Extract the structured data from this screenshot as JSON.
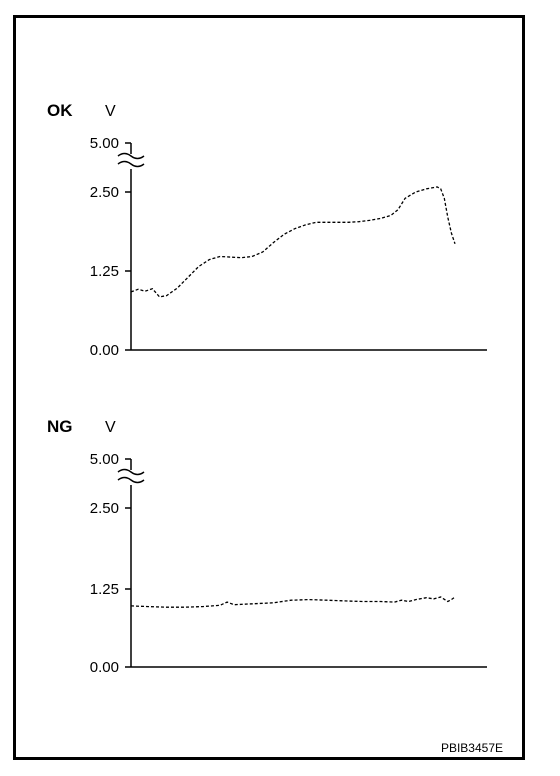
{
  "figure_code": "PBIB3457E",
  "chart_data": [
    {
      "type": "line",
      "panel_label": "OK",
      "ylabel": "V",
      "ylim": [
        0,
        5
      ],
      "yticks": [
        "5.00",
        "2.50",
        "1.25",
        "0.00"
      ],
      "axis_break": "between 2.50 and 5.00",
      "grid": false,
      "line_style": "dashed",
      "series": [
        {
          "values": [
            [
              0.0,
              0.92
            ],
            [
              0.02,
              0.96
            ],
            [
              0.04,
              0.93
            ],
            [
              0.06,
              0.97
            ],
            [
              0.08,
              0.84
            ],
            [
              0.1,
              0.86
            ],
            [
              0.13,
              0.98
            ],
            [
              0.16,
              1.15
            ],
            [
              0.19,
              1.32
            ],
            [
              0.22,
              1.43
            ],
            [
              0.25,
              1.48
            ],
            [
              0.28,
              1.47
            ],
            [
              0.31,
              1.46
            ],
            [
              0.34,
              1.48
            ],
            [
              0.37,
              1.55
            ],
            [
              0.4,
              1.7
            ],
            [
              0.43,
              1.83
            ],
            [
              0.46,
              1.92
            ],
            [
              0.49,
              1.98
            ],
            [
              0.52,
              2.02
            ],
            [
              0.55,
              2.02
            ],
            [
              0.58,
              2.02
            ],
            [
              0.61,
              2.02
            ],
            [
              0.64,
              2.03
            ],
            [
              0.67,
              2.05
            ],
            [
              0.7,
              2.08
            ],
            [
              0.73,
              2.13
            ],
            [
              0.75,
              2.22
            ],
            [
              0.77,
              2.4
            ],
            [
              0.8,
              2.5
            ],
            [
              0.83,
              2.55
            ],
            [
              0.86,
              2.58
            ],
            [
              0.87,
              2.55
            ],
            [
              0.88,
              2.4
            ],
            [
              0.89,
              2.1
            ],
            [
              0.9,
              1.85
            ],
            [
              0.91,
              1.68
            ]
          ]
        }
      ]
    },
    {
      "type": "line",
      "panel_label": "NG",
      "ylabel": "V",
      "ylim": [
        0,
        5
      ],
      "yticks": [
        "5.00",
        "2.50",
        "1.25",
        "0.00"
      ],
      "axis_break": "between 2.50 and 5.00",
      "grid": false,
      "line_style": "dashed",
      "series": [
        {
          "values": [
            [
              0.0,
              0.96
            ],
            [
              0.05,
              0.95
            ],
            [
              0.1,
              0.94
            ],
            [
              0.15,
              0.94
            ],
            [
              0.2,
              0.95
            ],
            [
              0.25,
              0.97
            ],
            [
              0.27,
              1.02
            ],
            [
              0.29,
              0.98
            ],
            [
              0.33,
              0.99
            ],
            [
              0.4,
              1.01
            ],
            [
              0.45,
              1.05
            ],
            [
              0.5,
              1.06
            ],
            [
              0.55,
              1.05
            ],
            [
              0.6,
              1.04
            ],
            [
              0.65,
              1.03
            ],
            [
              0.7,
              1.03
            ],
            [
              0.74,
              1.02
            ],
            [
              0.76,
              1.05
            ],
            [
              0.78,
              1.03
            ],
            [
              0.8,
              1.06
            ],
            [
              0.83,
              1.09
            ],
            [
              0.85,
              1.07
            ],
            [
              0.87,
              1.1
            ],
            [
              0.89,
              1.03
            ],
            [
              0.9,
              1.06
            ],
            [
              0.91,
              1.1
            ]
          ]
        }
      ]
    }
  ]
}
